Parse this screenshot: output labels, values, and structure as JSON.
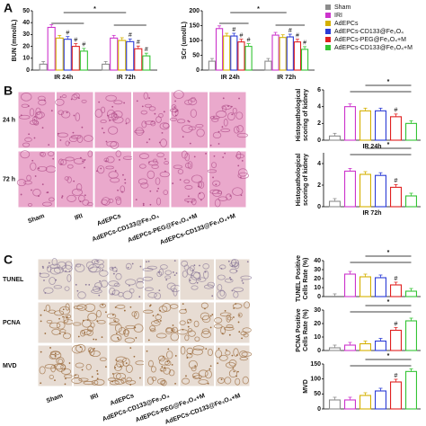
{
  "panel_letters": [
    "A",
    "B",
    "C"
  ],
  "symbols": {
    "star": "*",
    "hash": "#"
  },
  "row_labels": {
    "b": [
      "24 h",
      "72 h"
    ],
    "c": [
      "TUNEL",
      "PCNA",
      "MVD"
    ]
  },
  "group_labels": [
    "Sham",
    "IRI",
    "AdEPCs",
    "AdEPCs-CD133@Fe₃O₄",
    "AdEPCs-PEG@Fe₃O₄+M",
    "AdEPCs-CD133@Fe₃O₄+M"
  ],
  "chart_data": [
    {
      "type": "grouped-bar",
      "ylabel": [
        "BUN (mmol/L)"
      ],
      "categories": [
        "IR 24h",
        "IR 72h"
      ],
      "series": [
        {
          "name": "Sham",
          "color": "#8c8c8c",
          "values": [
            5,
            5
          ]
        },
        {
          "name": "IRI",
          "color": "#cc33cc",
          "values": [
            36,
            27
          ]
        },
        {
          "name": "AdEPCs",
          "color": "#d4b000",
          "values": [
            27,
            25
          ]
        },
        {
          "name": "AdEPCs-CD133@Fe₃O₄",
          "color": "#2b3bd6",
          "values": [
            26,
            24
          ]
        },
        {
          "name": "AdEPCs-PEG@Fe₃O₄+M",
          "color": "#e02020",
          "values": [
            20,
            18
          ]
        },
        {
          "name": "AdEPCs-CD133@Fe₃O₄+M",
          "color": "#33c433",
          "values": [
            16,
            12
          ]
        }
      ],
      "ylim": [
        0,
        50
      ],
      "yticks": [
        0,
        10,
        20,
        30,
        40,
        50
      ]
    },
    {
      "type": "grouped-bar",
      "ylabel": [
        "SCr (umol/L)"
      ],
      "categories": [
        "IR 24h",
        "IR 72h"
      ],
      "series": [
        {
          "color": "#8c8c8c",
          "values": [
            30,
            30
          ]
        },
        {
          "color": "#cc33cc",
          "values": [
            140,
            118
          ]
        },
        {
          "color": "#d4b000",
          "values": [
            115,
            110
          ]
        },
        {
          "color": "#2b3bd6",
          "values": [
            115,
            112
          ]
        },
        {
          "color": "#e02020",
          "values": [
            95,
            95
          ]
        },
        {
          "color": "#33c433",
          "values": [
            80,
            70
          ]
        }
      ],
      "ylim": [
        0,
        200
      ],
      "yticks": [
        0,
        50,
        100,
        150,
        200
      ]
    },
    {
      "type": "bar",
      "ylabel": [
        "Histopathological",
        "scoring of kidney"
      ],
      "xlabel": "IR 24h",
      "values": [
        0.5,
        4.0,
        3.5,
        3.5,
        2.8,
        2.0
      ],
      "colors": [
        "#8c8c8c",
        "#cc33cc",
        "#d4b000",
        "#2b3bd6",
        "#e02020",
        "#33c433"
      ],
      "ylim": [
        0,
        6
      ],
      "yticks": [
        0,
        2,
        4,
        6
      ]
    },
    {
      "type": "bar",
      "ylabel": [
        "Histopathological",
        "scoring of kidney"
      ],
      "xlabel": "IR 72h",
      "values": [
        0.5,
        3.3,
        3.0,
        2.9,
        1.8,
        1.0
      ],
      "colors": [
        "#8c8c8c",
        "#cc33cc",
        "#d4b000",
        "#2b3bd6",
        "#e02020",
        "#33c433"
      ],
      "ylim": [
        0,
        5
      ],
      "yticks": [
        0,
        2,
        4
      ]
    },
    {
      "type": "bar",
      "ylabel": [
        "TUNEL Positive",
        "Cells Rate (%)"
      ],
      "values": [
        0,
        25,
        22,
        21,
        13,
        6
      ],
      "colors": [
        "#8c8c8c",
        "#cc33cc",
        "#d4b000",
        "#2b3bd6",
        "#e02020",
        "#33c433"
      ],
      "ylim": [
        0,
        40
      ],
      "yticks": [
        0,
        10,
        20,
        30,
        40
      ]
    },
    {
      "type": "bar",
      "ylabel": [
        "PCNA Positive",
        "Cells Rate (%)"
      ],
      "values": [
        2,
        4,
        5,
        7,
        15,
        22
      ],
      "colors": [
        "#8c8c8c",
        "#cc33cc",
        "#d4b000",
        "#2b3bd6",
        "#e02020",
        "#33c433"
      ],
      "ylim": [
        0,
        30
      ],
      "yticks": [
        0,
        10,
        20,
        30
      ]
    },
    {
      "type": "bar",
      "ylabel": [
        "MVD"
      ],
      "values": [
        30,
        30,
        45,
        60,
        90,
        125
      ],
      "colors": [
        "#8c8c8c",
        "#cc33cc",
        "#d4b000",
        "#2b3bd6",
        "#e02020",
        "#33c433"
      ],
      "ylim": [
        0,
        150
      ],
      "yticks": [
        0,
        50,
        100,
        150
      ]
    }
  ]
}
